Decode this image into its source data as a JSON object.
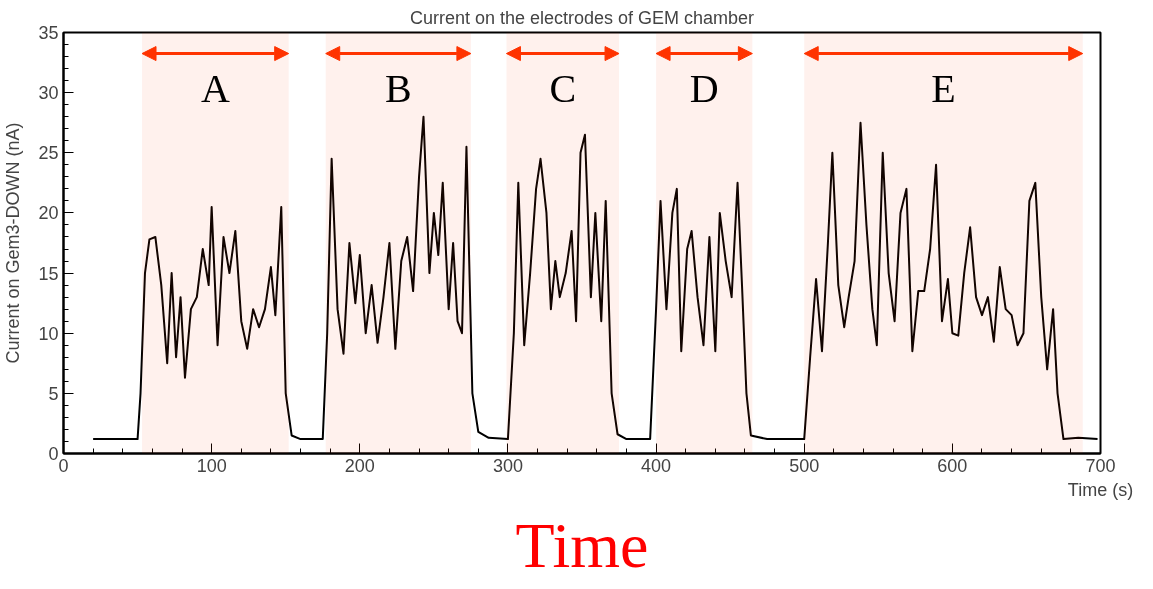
{
  "chart_data": {
    "type": "line",
    "title": "Current on the electrodes of GEM chamber",
    "xlabel": "Time (s)",
    "ylabel": "Current on Gem3-DOWN (nA)",
    "x": [
      20,
      50,
      52,
      55,
      58,
      62,
      66,
      70,
      73,
      76,
      79,
      82,
      86,
      90,
      94,
      98,
      100,
      104,
      108,
      112,
      116,
      120,
      124,
      128,
      132,
      136,
      140,
      143,
      147,
      150,
      154,
      160,
      175,
      178,
      181,
      185,
      189,
      193,
      197,
      200,
      204,
      208,
      212,
      216,
      220,
      224,
      228,
      232,
      236,
      240,
      243,
      247,
      250,
      253,
      256,
      260,
      263,
      266,
      269,
      272,
      276,
      280,
      287,
      300,
      304,
      307,
      311,
      315,
      319,
      322,
      326,
      329,
      332,
      335,
      339,
      343,
      346,
      349,
      352,
      356,
      359,
      363,
      366,
      370,
      374,
      380,
      396,
      400,
      403,
      407,
      411,
      414,
      417,
      421,
      424,
      428,
      432,
      436,
      440,
      443,
      447,
      451,
      455,
      458,
      461,
      464,
      475,
      500,
      504,
      508,
      512,
      516,
      519,
      523,
      527,
      530,
      534,
      538,
      542,
      546,
      549,
      553,
      557,
      561,
      565,
      569,
      573,
      577,
      581,
      585,
      589,
      593,
      597,
      600,
      604,
      608,
      612,
      616,
      620,
      624,
      628,
      632,
      636,
      640,
      644,
      648,
      652,
      656,
      660,
      664,
      668,
      671,
      675,
      685,
      698
    ],
    "series": [
      {
        "color": "#000000",
        "values": [
          1.2,
          1.2,
          5,
          15,
          17.8,
          18,
          14,
          7.5,
          15,
          8,
          13,
          6.3,
          12,
          13,
          17,
          14,
          20.5,
          9,
          18,
          15,
          18.5,
          11,
          8.7,
          12,
          10.5,
          12,
          15.5,
          11.5,
          20.5,
          5,
          1.5,
          1.2,
          1.2,
          10,
          24.5,
          12,
          8.3,
          17.5,
          12.5,
          16.5,
          10,
          14,
          9.2,
          13,
          17.5,
          8.7,
          16,
          18,
          13.5,
          23,
          28,
          15,
          20,
          16.5,
          22.5,
          12,
          17.5,
          11,
          10,
          25.5,
          5,
          1.8,
          1.3,
          1.2,
          10,
          22.5,
          9,
          15,
          22,
          24.5,
          20,
          12,
          16,
          13,
          15,
          18.5,
          11,
          25,
          26.5,
          13,
          20,
          11,
          21,
          5,
          1.6,
          1.2,
          1.2,
          12,
          21,
          12,
          20,
          22,
          8.5,
          17,
          18.5,
          13,
          9,
          18,
          8.5,
          20,
          16,
          13,
          22.5,
          14,
          5,
          1.5,
          1.2,
          1.2,
          8,
          14.5,
          8.5,
          17.5,
          25,
          14,
          10.5,
          13,
          16,
          27.5,
          19,
          12,
          9,
          25,
          15,
          11,
          20,
          22,
          8.5,
          13.5,
          13.5,
          17,
          24,
          11,
          14.5,
          10,
          9.8,
          15,
          18.8,
          13,
          11.5,
          13,
          9.3,
          15.5,
          12,
          11.5,
          9,
          10,
          21,
          22.5,
          13,
          7,
          12,
          5,
          1.2,
          1.3,
          1.2
        ]
      }
    ],
    "xlim": [
      0,
      700
    ],
    "ylim": [
      0,
      35
    ],
    "xticks": [
      0,
      100,
      200,
      300,
      400,
      500,
      600,
      700
    ],
    "yticks": [
      0,
      5,
      10,
      15,
      20,
      25,
      30,
      35
    ],
    "grid": false,
    "bands": [
      {
        "axis": "x",
        "from": 53,
        "to": 152,
        "label": "A",
        "color": "#ff3300"
      },
      {
        "axis": "x",
        "from": 177,
        "to": 275,
        "label": "B",
        "color": "#ff3300"
      },
      {
        "axis": "x",
        "from": 299,
        "to": 375,
        "label": "C",
        "color": "#ff3300"
      },
      {
        "axis": "x",
        "from": 400,
        "to": 465,
        "label": "D",
        "color": "#ff3300"
      },
      {
        "axis": "x",
        "from": 500,
        "to": 688,
        "label": "E",
        "color": "#ff3300"
      }
    ],
    "annotations": [
      "Time"
    ]
  }
}
